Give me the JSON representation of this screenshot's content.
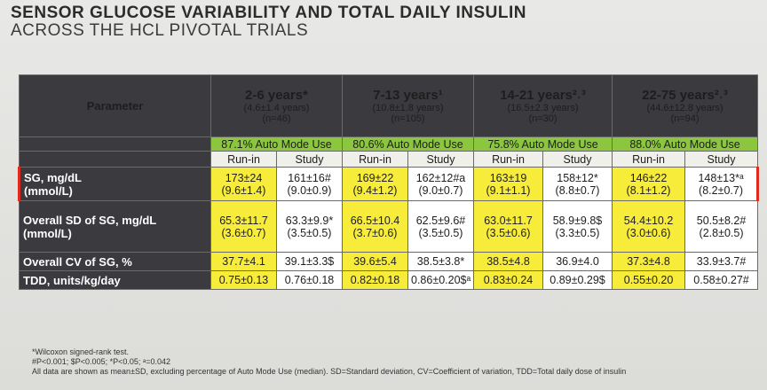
{
  "title": {
    "line1": "SENSOR GLUCOSE VARIABILITY AND TOTAL DAILY INSULIN",
    "line2": "ACROSS THE HCL PIVOTAL TRIALS"
  },
  "table": {
    "param_header": "Parameter",
    "groups": [
      {
        "age": "2-6 years*",
        "mean": "(4.6±1.4 years)",
        "n": "(n=46)",
        "auto": "87.1% Auto Mode Use"
      },
      {
        "age": "7-13 years¹",
        "mean": "(10.8±1.8 years)",
        "n": "(n=105)",
        "auto": "80.6% Auto Mode Use"
      },
      {
        "age": "14-21 years²˒³",
        "mean": "(16.5±2.3 years)",
        "n": "(n=30)",
        "auto": "75.8% Auto Mode Use"
      },
      {
        "age": "22-75 years²˒³",
        "mean": "(44.6±12.8 years)",
        "n": "(n=94)",
        "auto": "88.0% Auto Mode Use"
      }
    ],
    "phases": {
      "runin": "Run-in",
      "study": "Study"
    },
    "rows": [
      {
        "label1": "SG, mg/dL",
        "label2": "(mmol/L)",
        "cells": [
          {
            "a": "173±24",
            "b": "(9.6±1.4)"
          },
          {
            "a": "161±16#",
            "b": "(9.0±0.9)"
          },
          {
            "a": "169±22",
            "b": "(9.4±1.2)"
          },
          {
            "a": "162±12#a",
            "b": "(9.0±0.7)"
          },
          {
            "a": "163±19",
            "b": "(9.1±1.1)"
          },
          {
            "a": "158±12*",
            "b": "(8.8±0.7)"
          },
          {
            "a": "146±22",
            "b": "(8.1±1.2)"
          },
          {
            "a": "148±13*ᵃ",
            "b": "(8.2±0.7)"
          }
        ]
      },
      {
        "label1": "Overall SD of SG, mg/dL",
        "label2": "(mmol/L)",
        "cells": [
          {
            "a": "65.3±11.7",
            "b": "(3.6±0.7)"
          },
          {
            "a": "63.3±9.9*",
            "b": "(3.5±0.5)"
          },
          {
            "a": "66.5±10.4",
            "b": "(3.7±0.6)"
          },
          {
            "a": "62.5±9.6#",
            "b": "(3.5±0.5)"
          },
          {
            "a": "63.0±11.7",
            "b": "(3.5±0.6)"
          },
          {
            "a": "58.9±9.8$",
            "b": "(3.3±0.5)"
          },
          {
            "a": "54.4±10.2",
            "b": "(3.0±0.6)"
          },
          {
            "a": "50.5±8.2#",
            "b": "(2.8±0.5)"
          }
        ]
      },
      {
        "label1": "Overall CV of SG, %",
        "cells": [
          "37.7±4.1",
          "39.1±3.3$",
          "39.6±5.4",
          "38.5±3.8*",
          "38.5±4.8",
          "36.9±4.0",
          "37.3±4.8",
          "33.9±3.7#"
        ]
      },
      {
        "label1": "TDD, units/kg/day",
        "cells": [
          "0.75±0.13",
          "0.76±0.18",
          "0.82±0.18",
          "0.86±0.20$ᵃ",
          "0.83±0.24",
          "0.89±0.29$",
          "0.55±0.20",
          "0.58±0.27#"
        ]
      }
    ]
  },
  "footnotes": [
    "*Wilcoxon signed-rank test.",
    "#P<0.001; $P<0.005; *P<0.05; ᵃ=0.042",
    "All data are shown as mean±SD, excluding percentage of Auto Mode Use (median). SD=Standard deviation, CV=Coefficient of variation, TDD=Total daily dose of insulin"
  ]
}
